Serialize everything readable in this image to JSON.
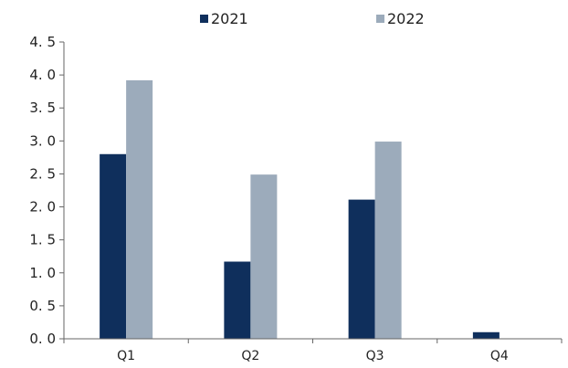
{
  "chart_data": {
    "type": "bar",
    "categories": [
      "Q1",
      "Q2",
      "Q3",
      "Q4"
    ],
    "series": [
      {
        "name": "2021",
        "color": "#0f2f5c",
        "values": [
          2.8,
          1.17,
          2.11,
          0.1
        ]
      },
      {
        "name": "2022",
        "color": "#9cabbb",
        "values": [
          3.92,
          2.49,
          2.99,
          null
        ]
      }
    ],
    "ylim": [
      0,
      4.5
    ],
    "yticks": [
      "0. 0",
      "0. 5",
      "1. 0",
      "1. 5",
      "2. 0",
      "2. 5",
      "3. 0",
      "3. 5",
      "4. 0",
      "4. 5"
    ],
    "ytick_values": [
      0,
      0.5,
      1.0,
      1.5,
      2.0,
      2.5,
      3.0,
      3.5,
      4.0,
      4.5
    ],
    "legend_position": "top",
    "grid": false
  }
}
